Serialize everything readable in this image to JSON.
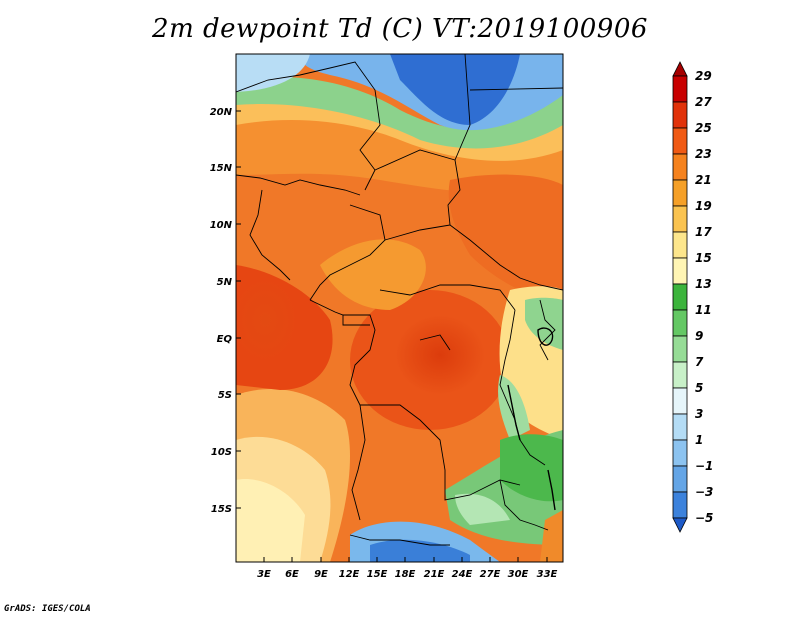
{
  "title": "2m dewpoint Td (C) VT:2019100906",
  "footer": "GrADS: IGES/COLA",
  "map": {
    "lat_labels": [
      "20N",
      "15N",
      "10N",
      "5N",
      "EQ",
      "5S",
      "10S",
      "15S"
    ],
    "lon_labels": [
      "3E",
      "6E",
      "9E",
      "12E",
      "15E",
      "18E",
      "21E",
      "24E",
      "27E",
      "30E",
      "33E"
    ]
  },
  "colorbar": {
    "labels": [
      "29",
      "27",
      "25",
      "23",
      "21",
      "19",
      "17",
      "15",
      "13",
      "11",
      "9",
      "7",
      "5",
      "3",
      "1",
      "−1",
      "−3",
      "−5"
    ],
    "colors": [
      "#a50000",
      "#c80000",
      "#e1320a",
      "#f05a14",
      "#f5821e",
      "#f5a028",
      "#fac350",
      "#fde68c",
      "#fff5b4",
      "#3cb43c",
      "#64c864",
      "#96dc96",
      "#c8f0c8",
      "#e6f5fa",
      "#b4dcf5",
      "#8cc3f0",
      "#64a5e6",
      "#3c82dc",
      "#1e5ac8"
    ]
  }
}
